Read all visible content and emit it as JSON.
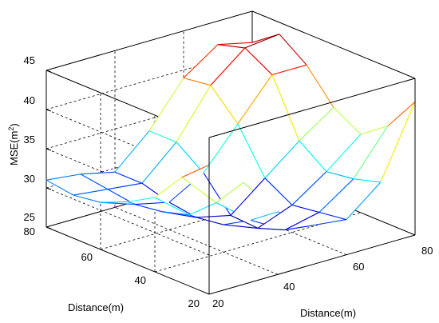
{
  "chart_data": {
    "type": "surface",
    "title": "",
    "xlabel": "Distance(m)",
    "ylabel": "Distance(m)",
    "zlabel_main": "MSE(m",
    "zlabel_sup": "2",
    "zlabel_close": ")",
    "x_ticks": [
      "20",
      "40",
      "60",
      "80"
    ],
    "y_ticks": [
      "20",
      "40",
      "60",
      "80"
    ],
    "z_ticks": [
      "25",
      "30",
      "35",
      "40",
      "45"
    ],
    "xlim": [
      20,
      80
    ],
    "ylim": [
      20,
      80
    ],
    "zlim": [
      25,
      45
    ],
    "grid": true,
    "colormap": "jet",
    "x": [
      20,
      30,
      40,
      50,
      60,
      70,
      80
    ],
    "y": [
      20,
      30,
      40,
      50,
      60,
      70,
      80
    ],
    "z": [
      [
        41.5,
        38.0,
        33.0,
        30.0,
        29.5,
        33.0,
        42.0
      ],
      [
        38.5,
        34.0,
        30.5,
        28.0,
        29.0,
        32.0,
        37.5
      ],
      [
        34.5,
        31.0,
        28.5,
        26.8,
        28.5,
        31.5,
        35.0
      ],
      [
        32.5,
        30.0,
        28.0,
        27.0,
        30.5,
        34.0,
        37.0
      ],
      [
        31.0,
        29.5,
        28.5,
        31.0,
        36.0,
        41.0,
        41.0
      ],
      [
        30.5,
        30.0,
        29.5,
        33.5,
        39.5,
        43.0,
        43.5
      ],
      [
        31.0,
        30.5,
        29.5,
        33.5,
        39.0,
        42.0,
        41.0
      ]
    ]
  }
}
